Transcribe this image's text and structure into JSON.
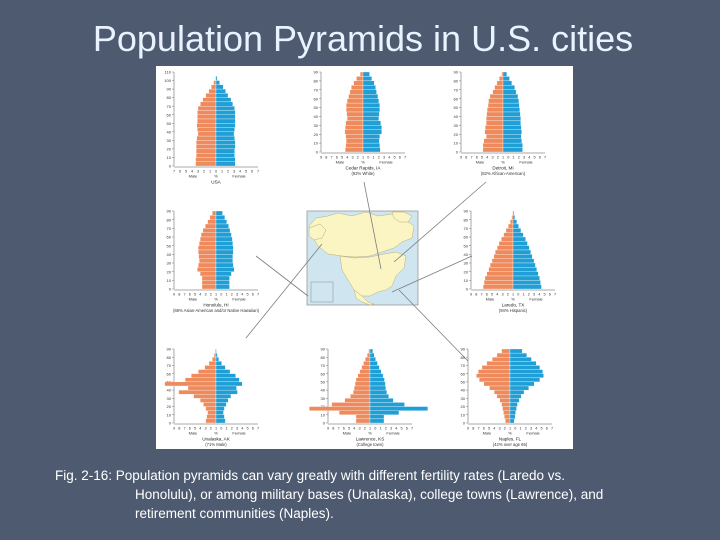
{
  "slide": {
    "title": "Population Pyramids in U.S. cities",
    "caption_lines": [
      "Fig. 2-16:  Population pyramids can vary greatly with different fertility rates (Laredo vs.",
      "Honolulu), or among military bases (Unalaska), college towns (Lawrence), and",
      "retirement communities (Naples)."
    ]
  },
  "colors": {
    "male": "#ee8a5c",
    "female": "#1f9fd6",
    "land": "#fbf4c3",
    "water": "#cfe6f1",
    "leader_line": "#7d7d7d"
  },
  "chart_data": [
    {
      "type": "bar",
      "title": "USA",
      "subtitle": "",
      "x_ticks": [
        "7",
        "6",
        "5",
        "4",
        "3",
        "2",
        "1",
        "0",
        "1",
        "2",
        "3",
        "4",
        "5",
        "6",
        "7"
      ],
      "x_labels": [
        "Male",
        "%",
        "Female"
      ],
      "y_ticks": [
        "110",
        "100",
        "90",
        "80",
        "70",
        "60",
        "50",
        "40",
        "30",
        "20",
        "10",
        "0"
      ],
      "xlim": [
        -7,
        7
      ],
      "male": [
        0.0,
        0.1,
        0.4,
        0.8,
        1.2,
        1.7,
        2.2,
        2.6,
        3.0,
        3.1,
        3.1,
        3.1,
        3.2,
        3.1,
        3.0,
        3.2,
        3.3,
        3.3,
        3.3,
        3.3,
        3.4,
        3.4
      ],
      "female": [
        0.0,
        0.2,
        0.6,
        1.2,
        1.6,
        2.0,
        2.5,
        2.8,
        3.1,
        3.2,
        3.2,
        3.2,
        3.2,
        3.1,
        3.0,
        3.1,
        3.2,
        3.2,
        3.1,
        3.1,
        3.2,
        3.2
      ]
    },
    {
      "type": "bar",
      "title": "Cedar Rapids, IA",
      "subtitle": "(92% White)",
      "x_ticks": [
        "9",
        "8",
        "7",
        "6",
        "5",
        "4",
        "3",
        "2",
        "1",
        "0",
        "1",
        "2",
        "3",
        "4",
        "5",
        "6",
        "7"
      ],
      "x_labels": [
        "Male",
        "%",
        "Female"
      ],
      "y_ticks": [
        "90",
        "80",
        "70",
        "60",
        "50",
        "40",
        "30",
        "20",
        "10",
        "0"
      ],
      "xlim": [
        -9,
        9
      ],
      "male": [
        0.6,
        1.4,
        2.0,
        2.5,
        2.8,
        3.1,
        3.4,
        3.6,
        3.6,
        3.5,
        3.4,
        3.7,
        3.8,
        3.9,
        3.7,
        3.6,
        3.7,
        3.8
      ],
      "female": [
        1.4,
        1.9,
        2.4,
        2.7,
        2.9,
        3.2,
        3.4,
        3.6,
        3.6,
        3.5,
        3.4,
        3.8,
        4.0,
        4.0,
        3.6,
        3.5,
        3.6,
        3.7
      ]
    },
    {
      "type": "bar",
      "title": "Detroit, MI",
      "subtitle": "(82% African-American)",
      "x_ticks": [
        "9",
        "8",
        "7",
        "6",
        "5",
        "4",
        "3",
        "2",
        "1",
        "0",
        "1",
        "2",
        "3",
        "4",
        "5",
        "6",
        "7"
      ],
      "x_labels": [
        "Male",
        "%",
        "Female"
      ],
      "y_ticks": [
        "90",
        "80",
        "70",
        "60",
        "50",
        "40",
        "30",
        "20",
        "10",
        "0"
      ],
      "xlim": [
        -9,
        9
      ],
      "male": [
        0.3,
        0.8,
        1.3,
        1.8,
        2.2,
        2.8,
        3.1,
        3.2,
        3.4,
        3.5,
        3.6,
        3.6,
        3.8,
        3.9,
        3.6,
        4.1,
        4.3,
        4.3
      ],
      "female": [
        0.8,
        1.4,
        1.9,
        2.5,
        2.8,
        3.2,
        3.4,
        3.5,
        3.6,
        3.7,
        3.8,
        3.8,
        3.9,
        4.0,
        3.9,
        4.0,
        4.2,
        4.2
      ]
    },
    {
      "type": "bar",
      "title": "Honolulu, HI",
      "subtitle": "(68% Asian-American and/or Native Hawaiian)",
      "x_ticks": [
        "9",
        "8",
        "7",
        "6",
        "5",
        "4",
        "3",
        "2",
        "1",
        "0",
        "1",
        "2",
        "3",
        "4",
        "5",
        "6",
        "7"
      ],
      "x_labels": [
        "Male",
        "%",
        "Female"
      ],
      "y_ticks": [
        "90",
        "80",
        "70",
        "60",
        "50",
        "40",
        "30",
        "20",
        "10",
        "0"
      ],
      "xlim": [
        -9,
        9
      ],
      "male": [
        0.8,
        1.3,
        1.8,
        2.3,
        2.8,
        3.2,
        3.4,
        3.6,
        3.8,
        3.8,
        3.7,
        3.6,
        3.8,
        4.0,
        3.4,
        3.0,
        3.0,
        3.0
      ],
      "female": [
        1.4,
        1.9,
        2.3,
        2.7,
        3.0,
        3.3,
        3.5,
        3.6,
        3.7,
        3.7,
        3.6,
        3.6,
        3.7,
        3.9,
        3.3,
        2.9,
        2.9,
        2.9
      ]
    },
    {
      "type": "bar",
      "title": "Laredo, TX",
      "subtitle": "(94% Hispanic)",
      "x_ticks": [
        "9",
        "8",
        "7",
        "6",
        "5",
        "4",
        "3",
        "2",
        "1",
        "0",
        "1",
        "2",
        "3",
        "4",
        "5",
        "6",
        "7"
      ],
      "x_labels": [
        "Male",
        "%",
        "Female"
      ],
      "y_ticks": [
        "90",
        "80",
        "70",
        "60",
        "50",
        "40",
        "30",
        "20",
        "10",
        "0"
      ],
      "xlim": [
        -9,
        9
      ],
      "male": [
        0.1,
        0.3,
        0.6,
        1.0,
        1.5,
        2.0,
        2.5,
        3.0,
        3.4,
        3.8,
        4.1,
        4.5,
        4.9,
        5.2,
        5.6,
        6.0,
        6.2,
        6.4
      ],
      "female": [
        0.2,
        0.4,
        0.8,
        1.2,
        1.7,
        2.2,
        2.7,
        3.1,
        3.5,
        3.8,
        4.1,
        4.5,
        4.8,
        5.1,
        5.4,
        5.7,
        5.9,
        6.1
      ]
    },
    {
      "type": "bar",
      "title": "Unalaska, AK",
      "subtitle": "(71% Male)",
      "x_ticks": [
        "9",
        "8",
        "7",
        "6",
        "5",
        "4",
        "3",
        "2",
        "1",
        "0",
        "1",
        "2",
        "3",
        "4",
        "5",
        "6",
        "7"
      ],
      "x_labels": [
        "Male",
        "%",
        "Female"
      ],
      "y_ticks": [
        "90",
        "80",
        "70",
        "60",
        "50",
        "40",
        "30",
        "20",
        "10",
        "0"
      ],
      "xlim": [
        -9,
        9
      ],
      "male": [
        0.2,
        0.4,
        0.8,
        1.5,
        2.4,
        3.8,
        5.3,
        6.6,
        11.0,
        6.0,
        8.0,
        4.8,
        3.4,
        2.7,
        2.2,
        1.8,
        2.0,
        2.2
      ],
      "female": [
        0.1,
        0.3,
        0.6,
        1.2,
        2.0,
        3.0,
        4.2,
        5.0,
        5.6,
        4.4,
        4.6,
        3.2,
        2.6,
        2.2,
        1.8,
        1.6,
        1.8,
        2.0
      ]
    },
    {
      "type": "bar",
      "title": "Lawrence, KS",
      "subtitle": "(College town)",
      "x_ticks": [
        "9",
        "8",
        "7",
        "6",
        "5",
        "4",
        "3",
        "2",
        "1",
        "0",
        "1",
        "2",
        "3",
        "4",
        "5",
        "6",
        "7"
      ],
      "x_labels": [
        "Male",
        "%",
        "Female"
      ],
      "y_ticks": [
        "90",
        "80",
        "70",
        "60",
        "50",
        "40",
        "30",
        "20",
        "10",
        "0"
      ],
      "xlim": [
        -9,
        9
      ],
      "male": [
        0.3,
        0.6,
        1.0,
        1.4,
        1.8,
        2.2,
        2.6,
        3.0,
        3.2,
        3.4,
        3.6,
        4.2,
        5.4,
        8.2,
        13.0,
        6.6,
        3.0,
        3.0
      ],
      "female": [
        0.6,
        0.9,
        1.2,
        1.6,
        2.0,
        2.4,
        2.8,
        3.1,
        3.3,
        3.4,
        3.6,
        4.0,
        5.0,
        7.4,
        12.4,
        6.2,
        3.0,
        3.0
      ]
    },
    {
      "type": "bar",
      "title": "Naples, FL",
      "subtitle": "(42% over age 65)",
      "x_ticks": [
        "9",
        "8",
        "7",
        "6",
        "5",
        "4",
        "3",
        "2",
        "1",
        "0",
        "1",
        "2",
        "3",
        "4",
        "5",
        "6",
        "7"
      ],
      "x_labels": [
        "Male",
        "%",
        "Female"
      ],
      "y_ticks": [
        "90",
        "80",
        "70",
        "60",
        "50",
        "40",
        "30",
        "20",
        "10",
        "0"
      ],
      "xlim": [
        -9,
        9
      ],
      "male": [
        1.8,
        2.8,
        3.8,
        5.0,
        6.0,
        6.8,
        7.2,
        6.6,
        5.6,
        4.4,
        3.4,
        2.8,
        2.2,
        1.8,
        1.6,
        1.4,
        1.2,
        1.0
      ],
      "female": [
        2.6,
        3.6,
        4.6,
        5.6,
        6.4,
        7.0,
        7.2,
        6.4,
        5.2,
        4.0,
        3.0,
        2.4,
        2.0,
        1.6,
        1.4,
        1.2,
        1.1,
        0.9
      ]
    }
  ]
}
